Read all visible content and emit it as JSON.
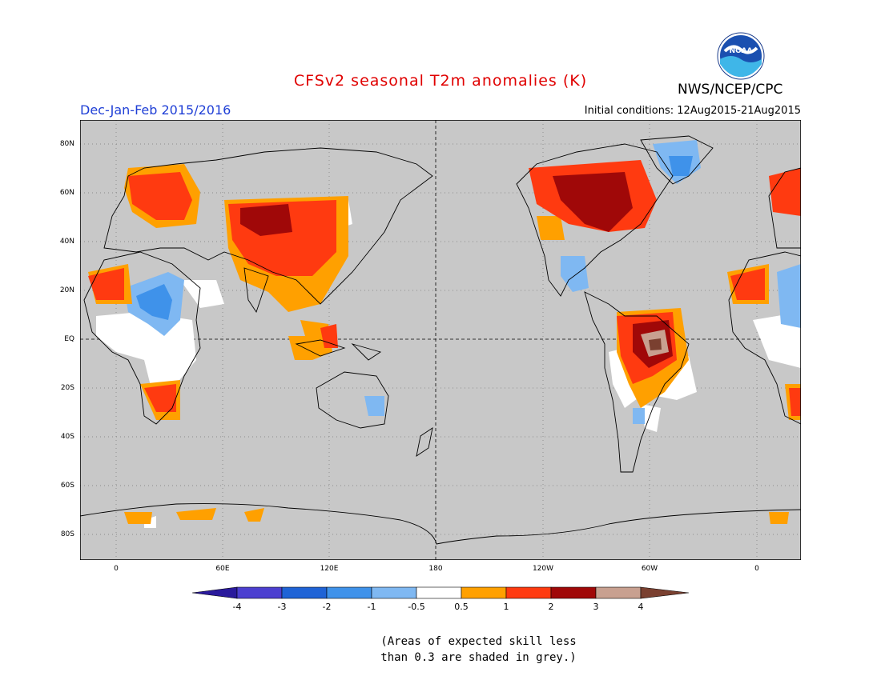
{
  "title": "CFSv2 seasonal T2m anomalies (K)",
  "season": "Dec-Jan-Feb 2015/2016",
  "initial_conditions": "Initial conditions: 12Aug2015-21Aug2015",
  "agency": "NWS/NCEP/CPC",
  "logo_text": "NOAA",
  "lat_ticks": [
    "80N",
    "60N",
    "40N",
    "20N",
    "EQ",
    "20S",
    "40S",
    "60S",
    "80S"
  ],
  "lon_ticks": [
    "0",
    "60E",
    "120E",
    "180",
    "120W",
    "60W",
    "0"
  ],
  "colorbar": {
    "levels": [
      "-4",
      "-3",
      "-2",
      "-1",
      "-0.5",
      "0.5",
      "1",
      "2",
      "3",
      "4"
    ],
    "colors": [
      "#2a1a9c",
      "#4c3fd0",
      "#1f63d6",
      "#3f92ea",
      "#7fb8f2",
      "#ffffff",
      "#ffa000",
      "#ff3a10",
      "#a00808",
      "#c8a090",
      "#7a4030"
    ]
  },
  "note_lines": [
    "(Areas of expected skill less",
    "than 0.3 are shaded in grey.)"
  ],
  "colors": {
    "land_grey": "#c8c8c8",
    "title_red": "#e00000",
    "season_blue": "#1f3fd6"
  }
}
